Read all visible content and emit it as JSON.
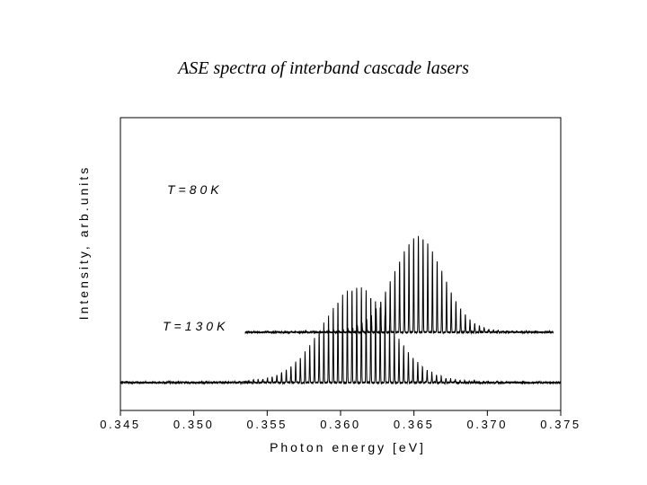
{
  "chart_data": {
    "type": "line",
    "title": "ASE spectra of interband cascade lasers",
    "xlabel": "Photon energy [eV]",
    "ylabel": "Intensity, arb.units",
    "xlim": [
      0.345,
      0.375
    ],
    "xticks": [
      "0.345",
      "0.350",
      "0.355",
      "0.360",
      "0.365",
      "0.370",
      "0.375"
    ],
    "y_ticks_labeled": false,
    "grid": false,
    "legend": "none",
    "series": [
      {
        "annotation": "T=80K",
        "x_range": [
          0.3535,
          0.3745
        ],
        "peak_center": 0.3653,
        "peak_width_sigma": 0.0022,
        "baseline": 0.33,
        "peak_amplitude": 0.63,
        "fringe_spacing": 0.00032
      },
      {
        "annotation": "T=130K",
        "x_range": [
          0.345,
          0.375
        ],
        "peak_center": 0.3611,
        "peak_width_sigma": 0.003,
        "baseline": 0.0,
        "peak_amplitude": 0.63,
        "fringe_spacing": 0.00032
      }
    ]
  }
}
